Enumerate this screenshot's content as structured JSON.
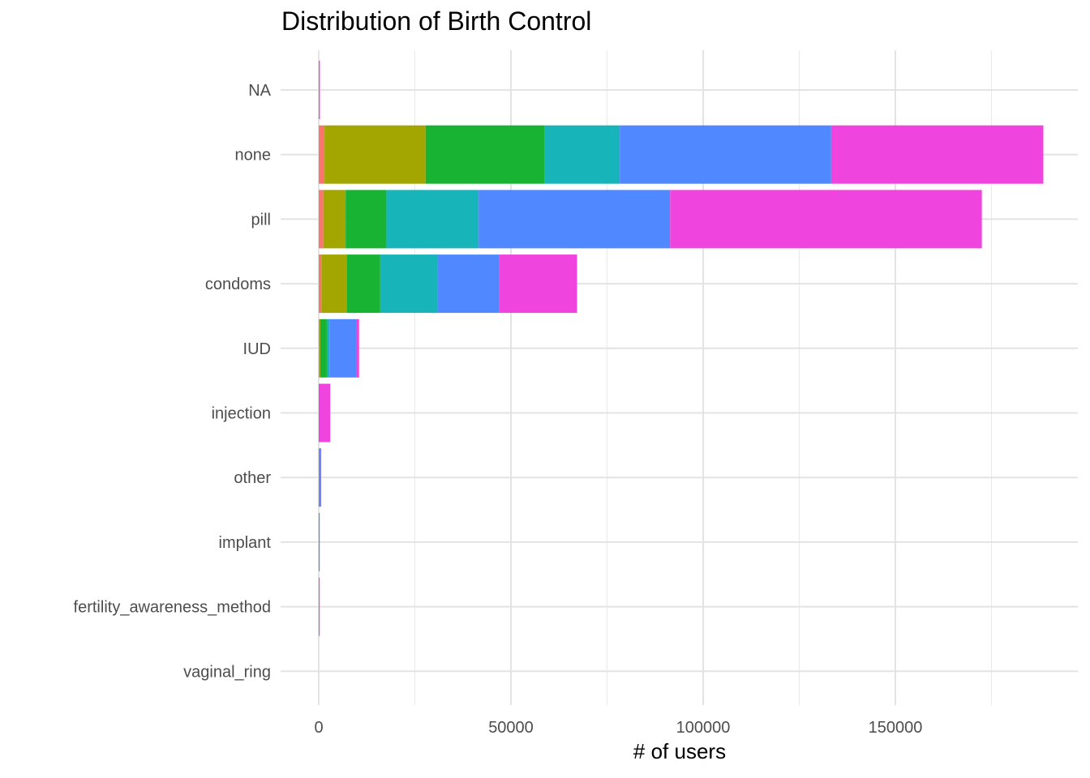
{
  "chart_data": {
    "type": "bar",
    "orientation": "horizontal",
    "stacked": true,
    "title": "Distribution of Birth Control",
    "xlabel": "# of users",
    "ylabel": "",
    "xlim": [
      -12000,
      198000
    ],
    "x_ticks": [
      0,
      50000,
      100000,
      150000
    ],
    "x_tick_labels": [
      "0",
      "50000",
      "100000",
      "150000"
    ],
    "grid": true,
    "legend": "none",
    "categories": [
      "NA",
      "none",
      "pill",
      "condoms",
      "IUD",
      "injection",
      "other",
      "implant",
      "fertility_awareness_method",
      "vaginal_ring"
    ],
    "series": [
      {
        "color": "#F8766D",
        "values": [
          0,
          1500,
          1200,
          700,
          100,
          0,
          0,
          0,
          0,
          0
        ]
      },
      {
        "color": "#A3A500",
        "values": [
          0,
          26300,
          5800,
          6600,
          300,
          0,
          0,
          0,
          0,
          0
        ]
      },
      {
        "color": "#19B333",
        "values": [
          0,
          31000,
          10600,
          8700,
          1700,
          0,
          0,
          0,
          0,
          0
        ]
      },
      {
        "color": "#17B4BA",
        "values": [
          0,
          19500,
          24000,
          15000,
          700,
          0,
          0,
          0,
          0,
          0
        ]
      },
      {
        "color": "#4F88FF",
        "values": [
          0,
          55000,
          49800,
          15900,
          6900,
          200,
          400,
          200,
          0,
          0
        ]
      },
      {
        "color": "#EF44DD",
        "values": [
          300,
          55200,
          81100,
          20300,
          800,
          2800,
          100,
          0,
          100,
          0
        ]
      }
    ]
  }
}
